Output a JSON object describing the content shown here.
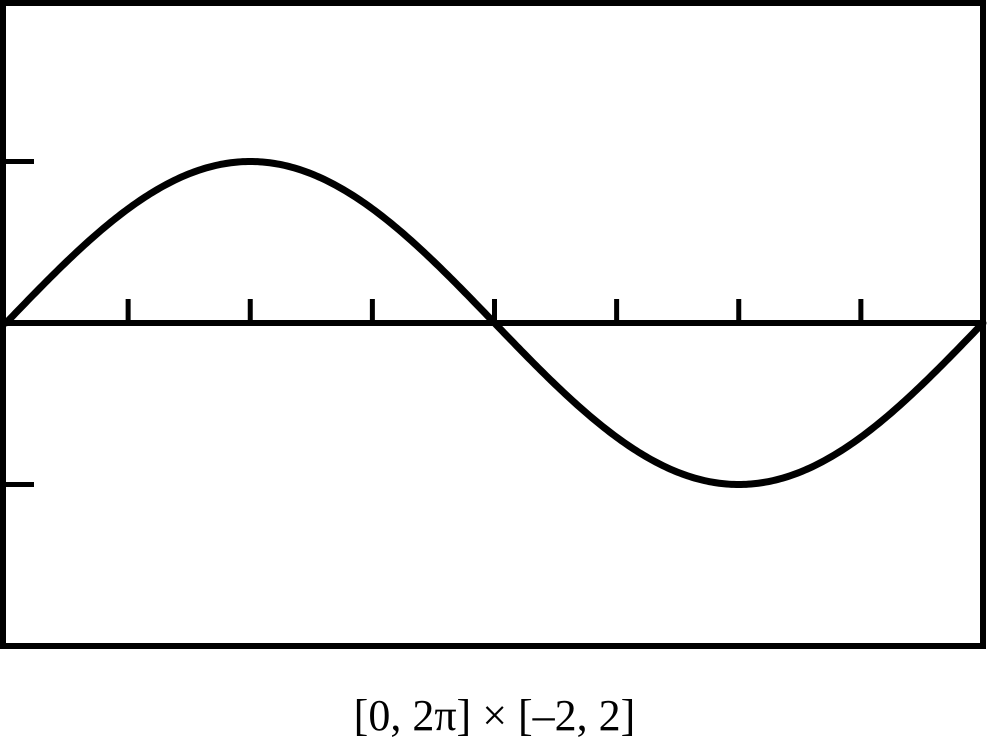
{
  "caption": "[0, 2π] × [–2, 2]",
  "chart_data": {
    "type": "line",
    "function": "sin(x)",
    "xlim": [
      0,
      6.283185307
    ],
    "ylim": [
      -2,
      2
    ],
    "x_tick_values": [
      0.7854,
      1.5708,
      2.3562,
      3.1416,
      3.927,
      4.7124,
      5.4978
    ],
    "y_tick_values": [
      1,
      -1
    ],
    "grid": false,
    "series": [
      {
        "x": [
          0,
          0.3927,
          0.7854,
          1.1781,
          1.5708,
          1.9635,
          2.3562,
          2.7489,
          3.1416,
          3.5343,
          3.927,
          4.3197,
          4.7124,
          5.1051,
          5.4978,
          5.8905,
          6.2832
        ],
        "y": [
          0,
          0.3827,
          0.7071,
          0.9239,
          1,
          0.9239,
          0.7071,
          0.3827,
          0,
          -0.3827,
          -0.7071,
          -0.9239,
          -1,
          -0.9239,
          -0.7071,
          -0.3827,
          0
        ]
      }
    ],
    "colors": {
      "ink": "#000000",
      "background": "#ffffff"
    }
  }
}
